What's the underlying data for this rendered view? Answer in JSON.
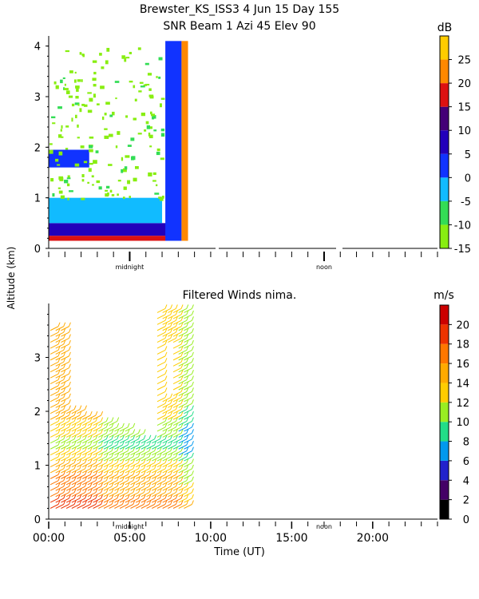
{
  "header": {
    "line1": "Brewster_KS_ISS3   4 Jun 15 Day 155",
    "line2": "SNR Beam  1 Azi   45 Elev 90"
  },
  "shared_ylabel": "Altitude (km)",
  "chart_data": [
    {
      "type": "heatmap",
      "title": "SNR Beam  1 Azi   45 Elev 90",
      "ylabel": "Altitude (km)",
      "ylim": [
        0,
        4.2
      ],
      "y_ticks": [
        "0",
        "1",
        "2",
        "3",
        "4"
      ],
      "x_markers": [
        "midnight",
        "noon"
      ],
      "xlim": [
        0,
        24
      ],
      "colorbar": {
        "unit": "dB",
        "tick_labels": [
          "-15",
          "-10",
          "-5",
          "0",
          "5",
          "10",
          "15",
          "20",
          "25"
        ],
        "levels": [
          -15,
          -10,
          -5,
          0,
          5,
          10,
          15,
          20,
          25,
          30
        ],
        "colors": [
          "#88ee11",
          "#33dd55",
          "#11bbff",
          "#1133ff",
          "#2200bb",
          "#440077",
          "#dd1111",
          "#ff8800",
          "#ffcc00"
        ]
      },
      "data_extent_hours": [
        0,
        8.6
      ],
      "regions": [
        {
          "t": [
            0,
            7.5
          ],
          "alt": [
            0.15,
            0.25
          ],
          "snr": 17
        },
        {
          "t": [
            0,
            7.5
          ],
          "alt": [
            0.25,
            0.5
          ],
          "snr": 7
        },
        {
          "t": [
            0,
            7.0
          ],
          "alt": [
            0.5,
            1.0
          ],
          "snr": -5
        },
        {
          "t": [
            0,
            2.5
          ],
          "alt": [
            1.6,
            1.95
          ],
          "snr": 2
        },
        {
          "t": [
            7.2,
            8.2
          ],
          "alt": [
            0.15,
            4.1
          ],
          "snr": 2
        },
        {
          "t": [
            8.2,
            8.6
          ],
          "alt": [
            0.15,
            4.1
          ],
          "snr": 22
        }
      ]
    },
    {
      "type": "wind_barbs",
      "title": "Filtered Winds nima.",
      "ylabel": "Altitude (km)",
      "xlabel": "Time (UT)",
      "xlim": [
        0,
        24
      ],
      "ylim": [
        0,
        4.0
      ],
      "x_ticks": [
        "00:00",
        "05:00",
        "10:00",
        "15:00",
        "20:00"
      ],
      "y_ticks": [
        "0",
        "1",
        "2",
        "3"
      ],
      "x_markers": [
        "midnight",
        "noon"
      ],
      "colorbar": {
        "unit": "m/s",
        "tick_labels": [
          "0",
          "2",
          "4",
          "6",
          "8",
          "10",
          "12",
          "14",
          "16",
          "18",
          "20"
        ],
        "levels": [
          0,
          2,
          4,
          6,
          8,
          10,
          12,
          14,
          16,
          18,
          20,
          22
        ],
        "colors": [
          "#000000",
          "#440066",
          "#2222cc",
          "#0099ee",
          "#22dd88",
          "#99ee22",
          "#ffcc00",
          "#ffaa00",
          "#ff7700",
          "#ee3300",
          "#cc0000"
        ]
      },
      "speed_profile": [
        {
          "alt": 0.2,
          "speed": 17
        },
        {
          "alt": 0.6,
          "speed": 15
        },
        {
          "alt": 1.0,
          "speed": 13
        },
        {
          "alt": 1.3,
          "speed": 9
        },
        {
          "alt": 1.8,
          "speed": 12
        },
        {
          "alt": 2.2,
          "speed": 14
        },
        {
          "alt": 3.0,
          "speed": 13
        }
      ],
      "data_extent_hours": [
        0,
        8.5
      ]
    }
  ]
}
